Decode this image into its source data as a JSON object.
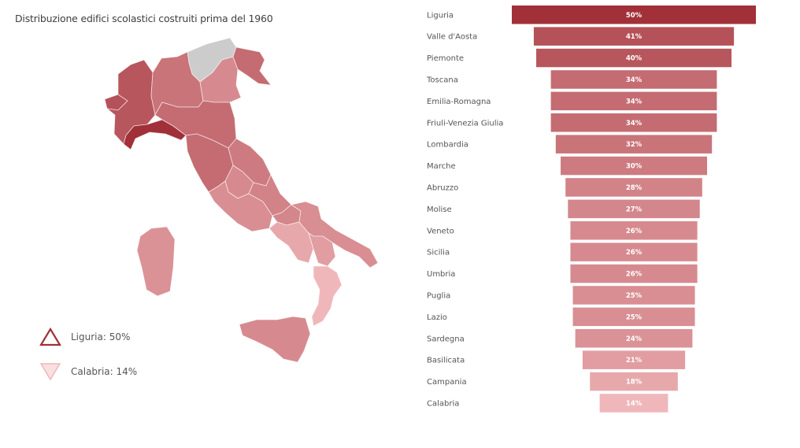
{
  "title": "Distribuzione edifici scolastici costruiti prima del 1960",
  "legend": {
    "max_label": "Liguria: 50%",
    "min_label": "Calabria: 14%",
    "max_color": "#a13038",
    "min_color": "#f0b7ba"
  },
  "colors": {
    "high": "#a13038",
    "low": "#f0b7ba",
    "no_data": "#cccccc"
  },
  "chart_data": {
    "type": "bar",
    "subtype": "funnel",
    "categories": [
      "Liguria",
      "Valle d'Aosta",
      "Piemonte",
      "Toscana",
      "Emilia-Romagna",
      "Friuli-Venezia Giulia",
      "Lombardia",
      "Marche",
      "Abruzzo",
      "Molise",
      "Veneto",
      "Sicilia",
      "Umbria",
      "Puglia",
      "Lazio",
      "Sardegna",
      "Basilicata",
      "Campania",
      "Calabria"
    ],
    "values": [
      50,
      41,
      40,
      34,
      34,
      34,
      32,
      30,
      28,
      27,
      26,
      26,
      26,
      25,
      25,
      24,
      21,
      18,
      14
    ],
    "value_labels": [
      "50%",
      "41%",
      "40%",
      "34%",
      "34%",
      "34%",
      "32%",
      "30%",
      "28%",
      "27%",
      "26%",
      "26%",
      "26%",
      "25%",
      "25%",
      "24%",
      "21%",
      "18%",
      "14%"
    ],
    "title": "Distribuzione edifici scolastici costruiti prima del 1960",
    "grid": false
  }
}
